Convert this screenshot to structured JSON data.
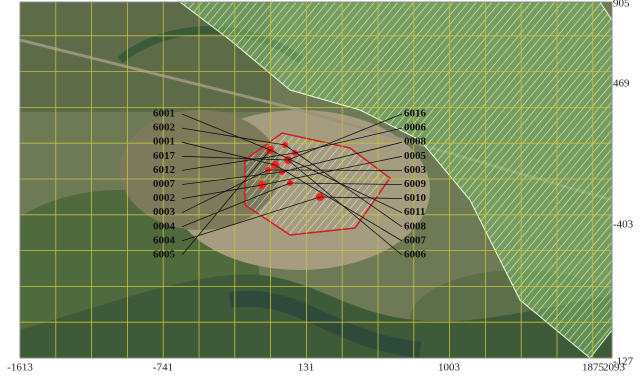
{
  "map": {
    "left_labels": [
      "6001",
      "6002",
      "0001",
      "6017",
      "6012",
      "0007",
      "0002",
      "0003",
      "0004",
      "6004",
      "6005"
    ],
    "right_labels": [
      "6016",
      "0006",
      "0008",
      "0005",
      "6003",
      "6009",
      "6010",
      "6011",
      "6008",
      "6007",
      "6006"
    ],
    "x_labels": [
      "-1613",
      "-741",
      "131",
      "1003",
      "1875",
      "2093"
    ],
    "y_labels": [
      "905",
      "469",
      "-403",
      "-127"
    ]
  }
}
